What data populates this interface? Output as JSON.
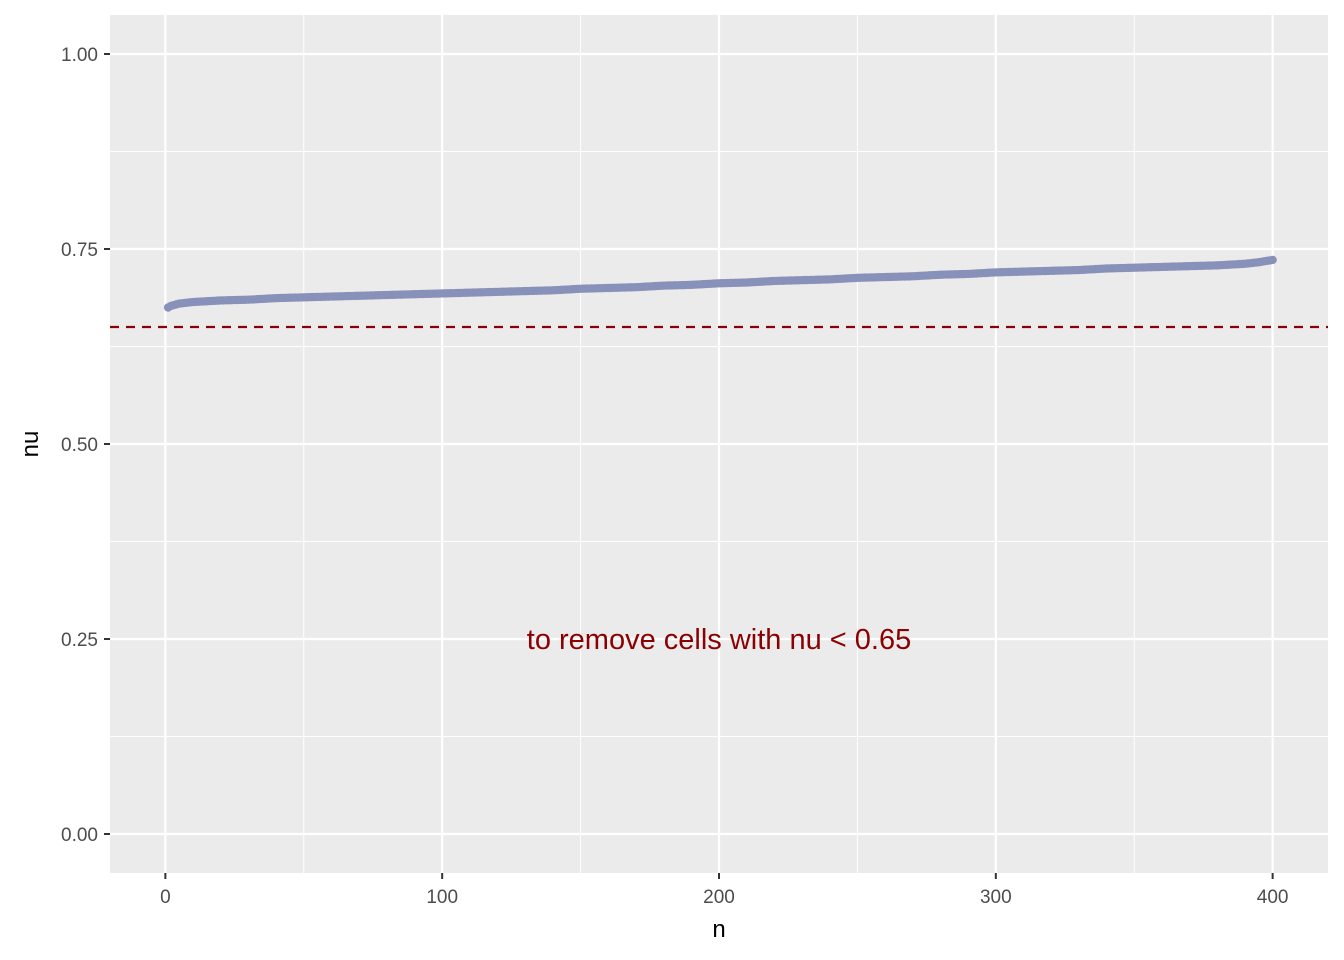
{
  "chart_data": {
    "type": "scatter",
    "xlabel": "n",
    "ylabel": "nu",
    "xlim": [
      -20,
      420
    ],
    "ylim": [
      -0.05,
      1.05
    ],
    "x_ticks": [
      0,
      100,
      200,
      300,
      400
    ],
    "x_tick_labels": [
      "0",
      "100",
      "200",
      "300",
      "400"
    ],
    "y_ticks": [
      0.0,
      0.25,
      0.5,
      0.75,
      1.0
    ],
    "y_tick_labels": [
      "0.00",
      "0.25",
      "0.50",
      "0.75",
      "1.00"
    ],
    "grid": true,
    "point_color": "#8891b9",
    "series": [
      {
        "x": [
          1,
          2,
          3,
          4,
          5,
          10,
          20,
          30,
          40,
          50,
          60,
          70,
          80,
          90,
          100,
          110,
          120,
          130,
          140,
          150,
          160,
          170,
          180,
          190,
          200,
          210,
          220,
          230,
          240,
          250,
          260,
          270,
          280,
          290,
          300,
          310,
          320,
          330,
          340,
          350,
          360,
          370,
          380,
          390,
          395,
          400
        ],
        "y": [
          0.675,
          0.677,
          0.678,
          0.679,
          0.68,
          0.682,
          0.684,
          0.685,
          0.687,
          0.688,
          0.689,
          0.69,
          0.691,
          0.692,
          0.693,
          0.694,
          0.695,
          0.696,
          0.697,
          0.699,
          0.7,
          0.701,
          0.703,
          0.704,
          0.706,
          0.707,
          0.709,
          0.71,
          0.711,
          0.713,
          0.714,
          0.715,
          0.717,
          0.718,
          0.72,
          0.721,
          0.722,
          0.723,
          0.725,
          0.726,
          0.727,
          0.728,
          0.729,
          0.731,
          0.733,
          0.736
        ]
      }
    ],
    "hline": {
      "y": 0.65,
      "color": "#8b0000",
      "style": "dashed"
    },
    "annotation": {
      "text": "to remove cells with nu < 0.65",
      "x": 200,
      "y": 0.25,
      "color": "#8b0000"
    }
  }
}
